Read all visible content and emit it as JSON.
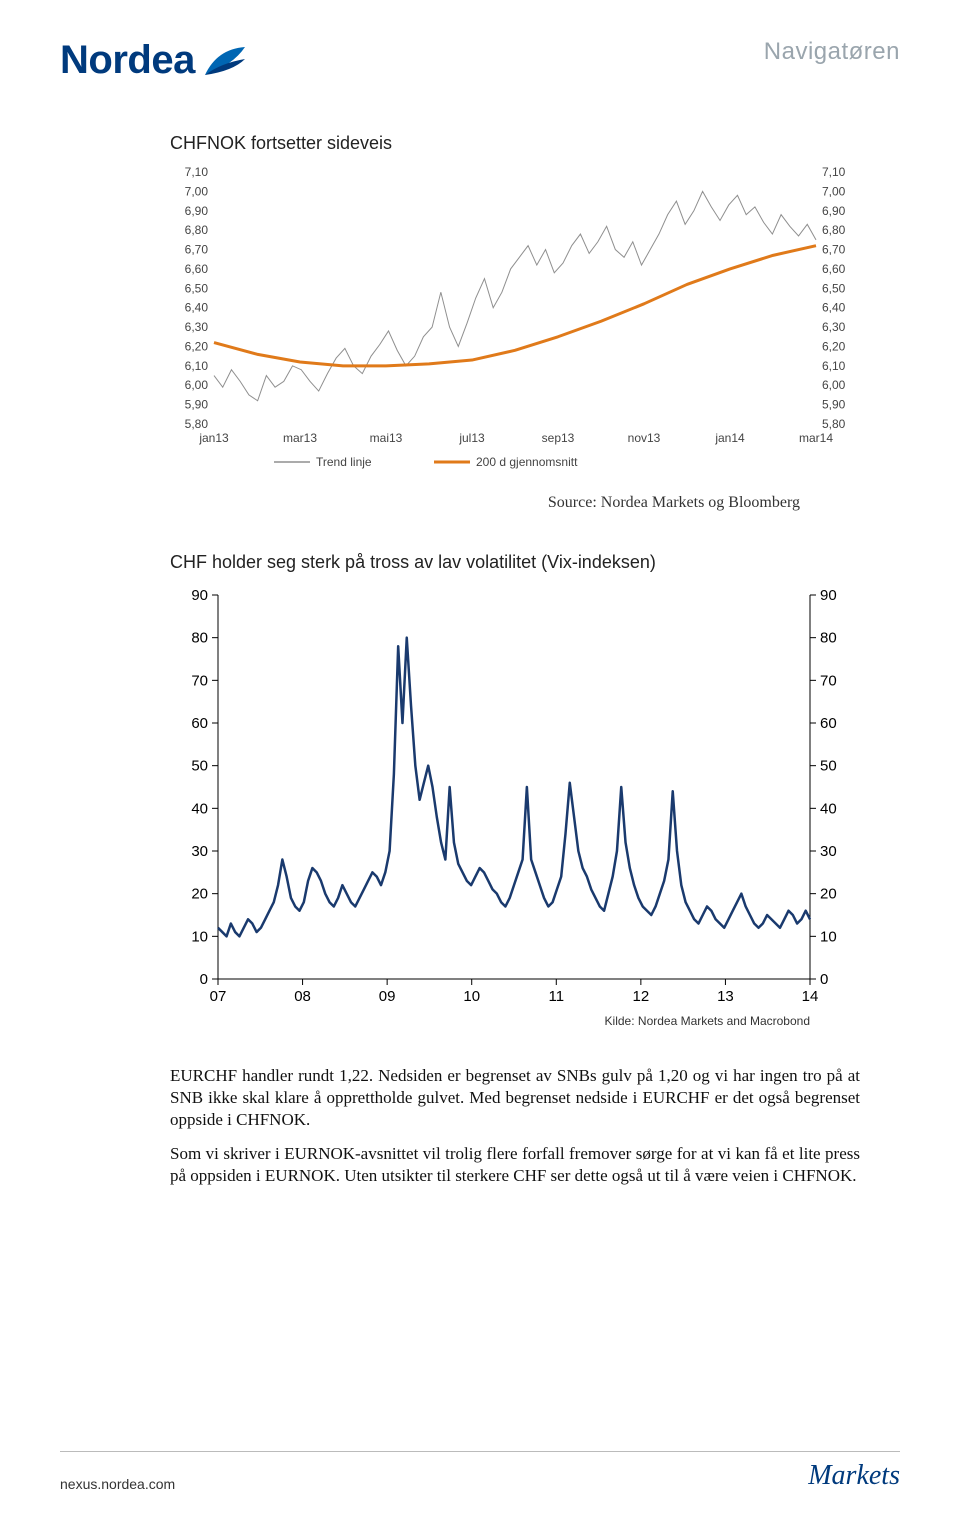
{
  "header": {
    "brand": "Nordea",
    "doc_label": "Navigatøren",
    "brand_color": "#003a7d"
  },
  "chart1": {
    "title": "CHFNOK fortsetter sideveis",
    "type": "line",
    "y_ticks": [
      "7,10",
      "7,00",
      "6,90",
      "6,80",
      "6,70",
      "6,60",
      "6,50",
      "6,40",
      "6,30",
      "6,20",
      "6,10",
      "6,00",
      "5,90",
      "5,80"
    ],
    "y_min": 5.8,
    "y_max": 7.1,
    "x_labels": [
      "jan13",
      "mar13",
      "mai13",
      "jul13",
      "sep13",
      "nov13",
      "jan14",
      "mar14"
    ],
    "legend": [
      "Trend linje",
      "200 d gjennomsnitt"
    ],
    "source": "Source: Nordea Markets og Bloomberg",
    "colors": {
      "price": "#8f8f8f",
      "avg": "#e07a1a",
      "axis_text": "#444444",
      "grid": "#e0e0e0",
      "background": "#ffffff"
    },
    "ma200": [
      6.22,
      6.16,
      6.12,
      6.1,
      6.1,
      6.11,
      6.13,
      6.18,
      6.25,
      6.33,
      6.42,
      6.52,
      6.6,
      6.67,
      6.72
    ],
    "price_series": [
      6.05,
      5.99,
      6.08,
      6.02,
      5.95,
      5.92,
      6.05,
      5.99,
      6.02,
      6.1,
      6.08,
      6.02,
      5.97,
      6.06,
      6.14,
      6.19,
      6.1,
      6.06,
      6.15,
      6.21,
      6.28,
      6.18,
      6.1,
      6.15,
      6.25,
      6.3,
      6.48,
      6.3,
      6.2,
      6.32,
      6.45,
      6.55,
      6.4,
      6.48,
      6.6,
      6.66,
      6.72,
      6.62,
      6.7,
      6.58,
      6.63,
      6.72,
      6.78,
      6.68,
      6.74,
      6.82,
      6.7,
      6.66,
      6.74,
      6.62,
      6.7,
      6.78,
      6.88,
      6.95,
      6.83,
      6.9,
      7.0,
      6.92,
      6.85,
      6.93,
      6.98,
      6.88,
      6.92,
      6.84,
      6.78,
      6.88,
      6.82,
      6.77,
      6.83,
      6.75
    ]
  },
  "chart2": {
    "title": "CHF holder seg sterk på tross av lav volatilitet (Vix-indeksen)",
    "type": "line",
    "y_ticks": [
      90,
      80,
      70,
      60,
      50,
      40,
      30,
      20,
      10,
      0
    ],
    "y_min": 0,
    "y_max": 90,
    "x_labels": [
      "07",
      "08",
      "09",
      "10",
      "11",
      "12",
      "13",
      "14"
    ],
    "kilde": "Kilde: Nordea Markets and Macrobond",
    "colors": {
      "line": "#1a3a6e",
      "axis": "#000000",
      "tick": "#000000",
      "background": "#ffffff"
    },
    "series": [
      12,
      11,
      10,
      13,
      11,
      10,
      12,
      14,
      13,
      11,
      12,
      14,
      16,
      18,
      22,
      28,
      24,
      19,
      17,
      16,
      18,
      23,
      26,
      25,
      23,
      20,
      18,
      17,
      19,
      22,
      20,
      18,
      17,
      19,
      21,
      23,
      25,
      24,
      22,
      25,
      30,
      48,
      78,
      60,
      80,
      64,
      50,
      42,
      46,
      50,
      45,
      38,
      32,
      28,
      45,
      32,
      27,
      25,
      23,
      22,
      24,
      26,
      25,
      23,
      21,
      20,
      18,
      17,
      19,
      22,
      25,
      28,
      45,
      28,
      25,
      22,
      19,
      17,
      18,
      21,
      24,
      34,
      46,
      38,
      30,
      26,
      24,
      21,
      19,
      17,
      16,
      20,
      24,
      30,
      45,
      32,
      26,
      22,
      19,
      17,
      16,
      15,
      17,
      20,
      23,
      28,
      44,
      30,
      22,
      18,
      16,
      14,
      13,
      15,
      17,
      16,
      14,
      13,
      12,
      14,
      16,
      18,
      20,
      17,
      15,
      13,
      12,
      13,
      15,
      14,
      13,
      12,
      14,
      16,
      15,
      13,
      14,
      16,
      14
    ]
  },
  "paragraphs": [
    "EURCHF handler rundt 1,22. Nedsiden er begrenset av SNBs gulv på 1,20 og vi har ingen tro på at SNB ikke skal klare å opprettholde gulvet. Med begrenset nedside i EURCHF er det også begrenset oppside i CHFNOK.",
    "Som vi skriver i EURNOK-avsnittet vil trolig flere forfall fremover sørge for at vi kan få et lite press på oppsiden i EURNOK. Uten utsikter til sterkere CHF ser dette også ut til å være veien i CHFNOK."
  ],
  "footer": {
    "link": "nexus.nordea.com",
    "brand": "Markets",
    "brand_color": "#003a7d"
  }
}
